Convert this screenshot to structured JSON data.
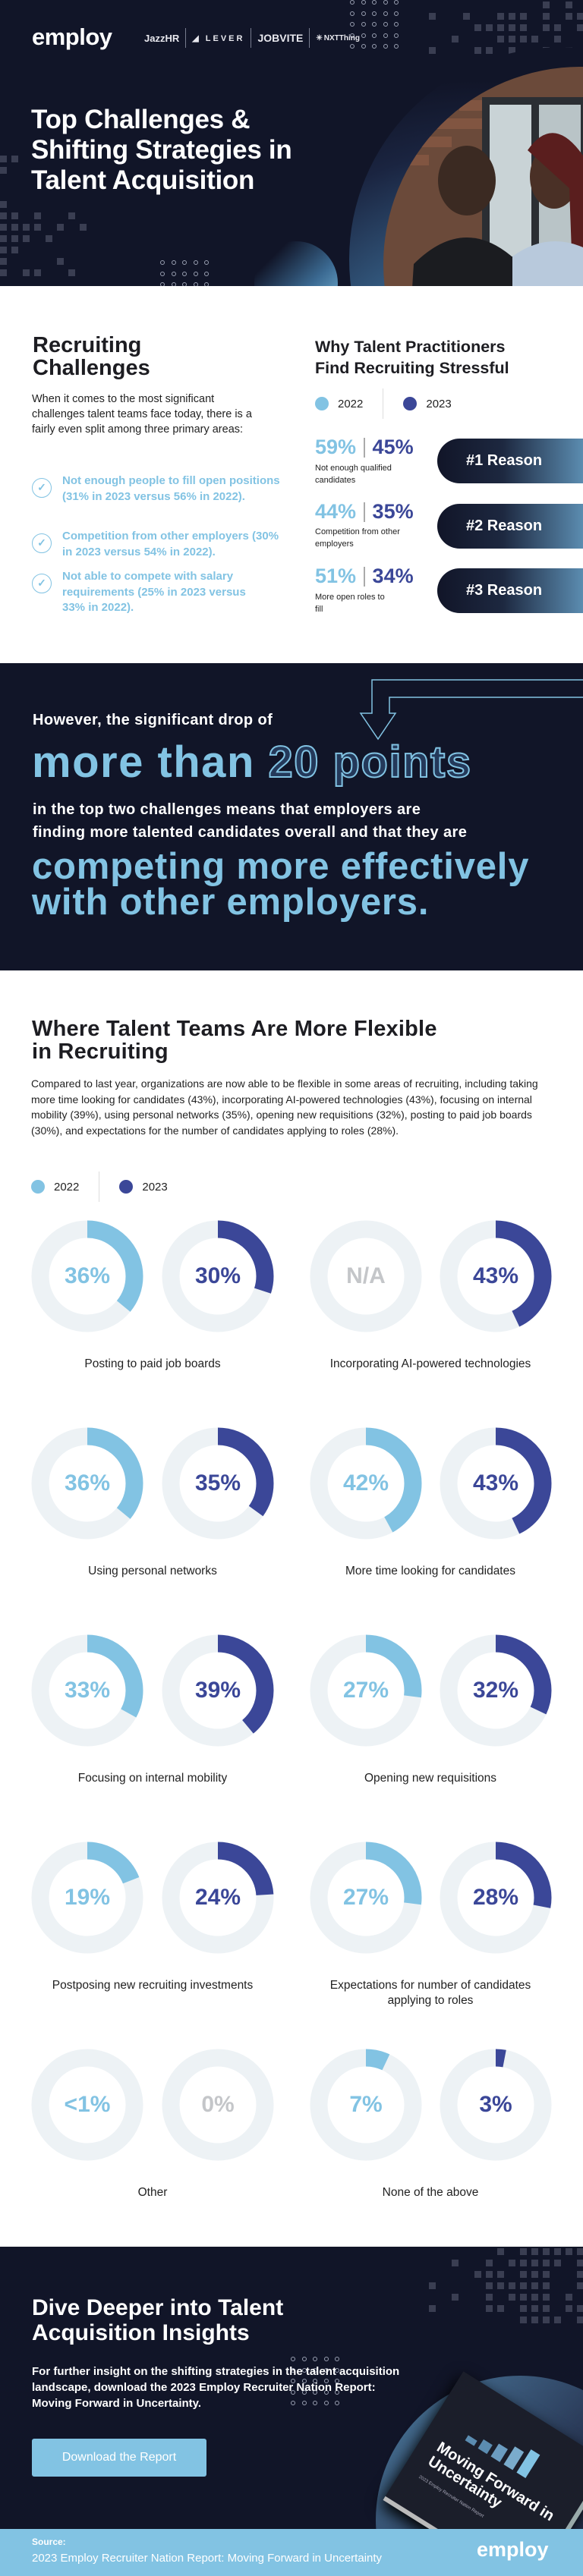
{
  "colors": {
    "navy_bg": "#111528",
    "light_blue": "#82c3e3",
    "dark_blue": "#3b4798",
    "track": "#edf2f5",
    "na_grey": "#c4c6c9"
  },
  "hero": {
    "logo": "employ",
    "partners": [
      "JazzHR",
      "LEVER",
      "JOBVITE",
      "NXTThing"
    ],
    "title_lines": [
      "Top Challenges &",
      "Shifting Strategies in",
      "Talent Acquisition"
    ]
  },
  "challenges": {
    "title_lines": [
      "Recruiting",
      "Challenges"
    ],
    "intro": "When it comes to the most significant challenges talent teams face today, there is a fairly even split among three primary areas:",
    "bullets": [
      "Not enough people to fill open positions (31% in 2023 versus 56% in 2022).",
      "Competition from other employers (30% in 2023 versus 54% in 2022).",
      "Not able to compete with salary requirements (25% in 2023 versus 33% in 2022)."
    ]
  },
  "stress": {
    "title_lines": [
      "Why Talent Practitioners",
      "Find Recruiting Stressful"
    ],
    "legend": {
      "y2022": "2022",
      "y2023": "2023"
    },
    "reasons": [
      {
        "v2022": "59%",
        "v2023": "45%",
        "label": "Not enough qualified candidates",
        "rank": "#1 Reason"
      },
      {
        "v2022": "44%",
        "v2023": "35%",
        "label": "Competition from other employers",
        "rank": "#2 Reason"
      },
      {
        "v2022": "51%",
        "v2023": "34%",
        "label": "More open roles to fill",
        "rank": "#3 Reason"
      }
    ]
  },
  "callout": {
    "line1": "However, the significant drop of",
    "big1_solid": "more than",
    "big1_outline": "20 points",
    "line2a": "in the top two challenges means that employers are",
    "line2b": "finding more talented candidates overall and that they are",
    "big2a": "competing more effectively",
    "big2b": "with other employers."
  },
  "flex": {
    "title_lines": [
      "Where Talent Teams Are More Flexible",
      "in Recruiting"
    ],
    "paragraph": "Compared to last year, organizations are now able to be flexible in some areas of recruiting, including taking more time looking for candidates (43%), incorporating AI-powered technologies (43%), focusing on internal mobility (39%), using personal networks (35%), opening new requisitions (32%), posting to paid job boards (30%), and expectations for the number of candidates applying to roles (28%).",
    "legend": {
      "y2022": "2022",
      "y2023": "2023"
    }
  },
  "chart_data": {
    "type": "donut",
    "series_names": [
      "2022",
      "2023"
    ],
    "items": [
      {
        "label": "Posting to paid job boards",
        "y2022": {
          "label": "36%",
          "value": 36
        },
        "y2023": {
          "label": "30%",
          "value": 30
        }
      },
      {
        "label": "Incorporating AI-powered technologies",
        "y2022": {
          "label": "N/A",
          "value": null
        },
        "y2023": {
          "label": "43%",
          "value": 43
        }
      },
      {
        "label": "Using personal networks",
        "y2022": {
          "label": "36%",
          "value": 36
        },
        "y2023": {
          "label": "35%",
          "value": 35
        }
      },
      {
        "label": "More time looking for candidates",
        "y2022": {
          "label": "42%",
          "value": 42
        },
        "y2023": {
          "label": "43%",
          "value": 43
        }
      },
      {
        "label": "Focusing on internal mobility",
        "y2022": {
          "label": "33%",
          "value": 33
        },
        "y2023": {
          "label": "39%",
          "value": 39
        }
      },
      {
        "label": "Opening new requisitions",
        "y2022": {
          "label": "27%",
          "value": 27
        },
        "y2023": {
          "label": "32%",
          "value": 32
        }
      },
      {
        "label": "Postposing new recruiting investments",
        "y2022": {
          "label": "19%",
          "value": 19
        },
        "y2023": {
          "label": "24%",
          "value": 24
        }
      },
      {
        "label": "Expectations for number of candidates applying to roles",
        "y2022": {
          "label": "27%",
          "value": 27
        },
        "y2023": {
          "label": "28%",
          "value": 28
        }
      },
      {
        "label": "Other",
        "y2022": {
          "label": "<1%",
          "value": 0
        },
        "y2023": {
          "label": "0%",
          "value": 0
        }
      },
      {
        "label": "None of the above",
        "y2022": {
          "label": "7%",
          "value": 7
        },
        "y2023": {
          "label": "3%",
          "value": 3
        }
      }
    ]
  },
  "cta": {
    "title_lines": [
      "Dive Deeper into Talent",
      "Acquisition Insights"
    ],
    "paragraph": "For further insight on the shifting strategies in the talent acquisition landscape, download the 2023 Employ Recruiter Nation Report: Moving Forward in Uncertainty.",
    "button": "Download the Report",
    "book_title": "Moving Forward in Uncertainty",
    "book_subtitle": "2023 Employ Recruiter Nation Report"
  },
  "footer": {
    "source_label": "Source:",
    "source": "2023 Employ Recruiter Nation Report: Moving Forward in Uncertainty",
    "logo": "employ"
  }
}
